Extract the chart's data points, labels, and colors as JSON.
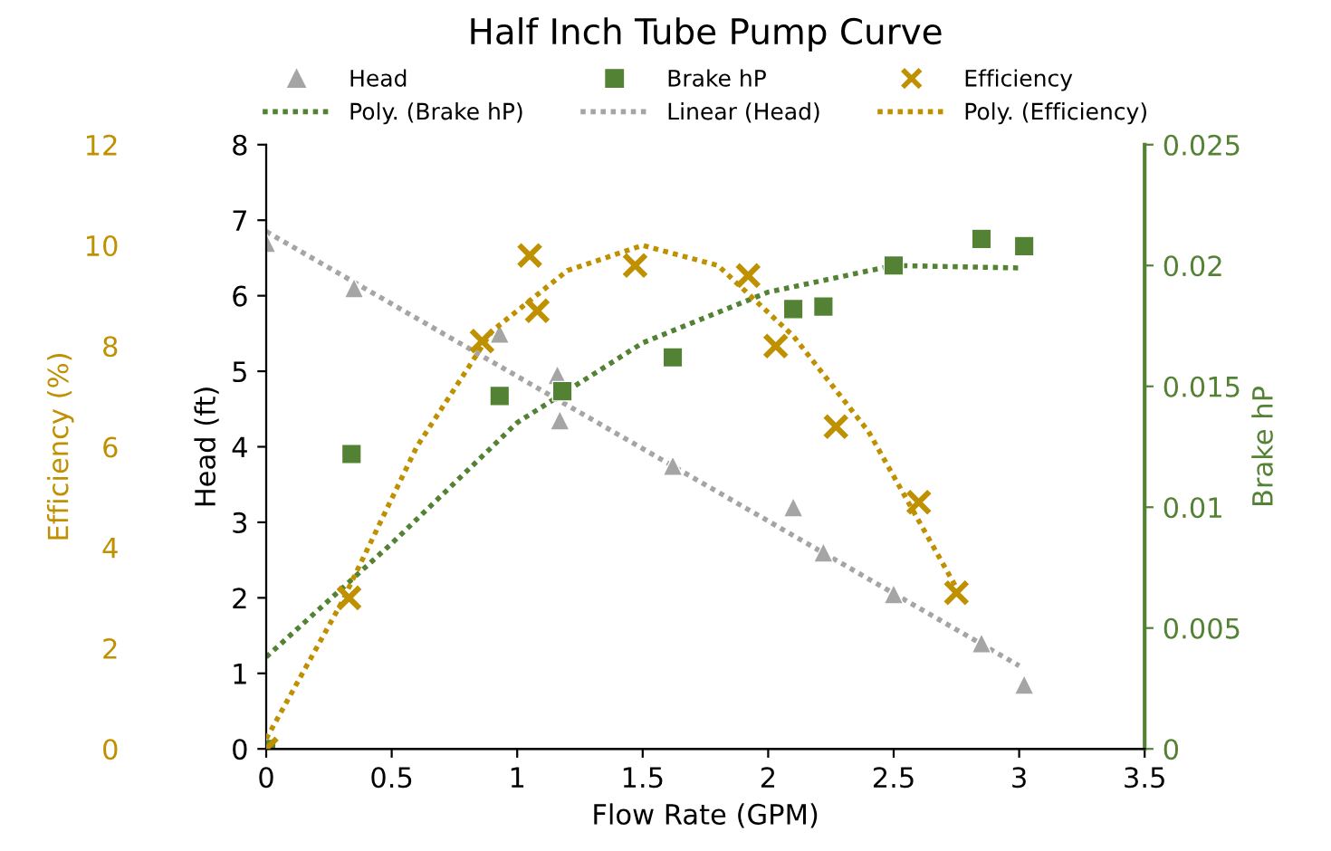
{
  "chart_data": {
    "type": "scatter",
    "title": "Half Inch Tube Pump Curve",
    "xlabel": "Flow Rate (GPM)",
    "ylabel": "Head (ft)",
    "y2label": "Brake hP",
    "y3label": "Efficiency (%)",
    "xlim": [
      0,
      3.5
    ],
    "xticks": [
      0,
      0.5,
      1,
      1.5,
      2,
      2.5,
      3,
      3.5
    ],
    "ylim": [
      0,
      8
    ],
    "yticks": [
      0,
      1,
      2,
      3,
      4,
      5,
      6,
      7,
      8
    ],
    "y2lim": [
      0,
      0.025
    ],
    "y2ticks": [
      0,
      0.005,
      0.01,
      0.015,
      0.02,
      0.025
    ],
    "y3lim": [
      0,
      12
    ],
    "y3ticks": [
      0,
      2,
      4,
      6,
      8,
      10,
      12
    ],
    "grid": false,
    "legend": "top",
    "series": [
      {
        "name": "Head",
        "color": "#a5a5a5",
        "marker": "triangle",
        "x": [
          0,
          0.35,
          0.93,
          1.16,
          1.17,
          1.62,
          2.1,
          2.22,
          2.5,
          2.85,
          3.02
        ],
        "values": [
          6.7,
          6.1,
          5.5,
          4.95,
          4.35,
          3.75,
          3.2,
          2.6,
          2.05,
          1.4,
          0.85
        ]
      },
      {
        "name": "Brake hP",
        "color": "#548235",
        "marker": "square",
        "axis": "y2",
        "x": [
          0,
          0.34,
          0.93,
          1.18,
          1.62,
          2.1,
          2.22,
          2.5,
          2.85,
          3.02
        ],
        "values": [
          0,
          0.0122,
          0.0146,
          0.0148,
          0.0162,
          0.0182,
          0.0183,
          0.02,
          0.0211,
          0.0208
        ]
      },
      {
        "name": "Efficiency",
        "color": "#bf9000",
        "marker": "cross",
        "axis": "y3",
        "x": [
          0,
          0.33,
          0.86,
          1.05,
          1.08,
          1.47,
          1.92,
          2.03,
          2.27,
          2.6,
          2.75
        ],
        "values": [
          0,
          3.0,
          8.1,
          9.8,
          8.7,
          9.6,
          9.4,
          8.0,
          6.4,
          4.9,
          3.1
        ]
      },
      {
        "name": "Poly. (Brake hP)",
        "type": "line",
        "color": "#548235",
        "marker": "none",
        "line_style": "dotted",
        "axis": "y2",
        "x": [
          0,
          0.5,
          1,
          1.5,
          2,
          2.5,
          3
        ],
        "values": [
          0.0038,
          0.0085,
          0.0135,
          0.0168,
          0.0189,
          0.02,
          0.0199
        ]
      },
      {
        "name": "Linear (Head)",
        "type": "line",
        "color": "#a5a5a5",
        "marker": "none",
        "line_style": "dotted",
        "x": [
          0,
          3
        ],
        "values": [
          6.85,
          1.1
        ]
      },
      {
        "name": "Poly. (Efficiency)",
        "type": "line",
        "color": "#bf9000",
        "marker": "none",
        "line_style": "dotted",
        "axis": "y3",
        "x": [
          0,
          0.3,
          0.6,
          0.9,
          1.2,
          1.5,
          1.8,
          2.1,
          2.4,
          2.75
        ],
        "values": [
          0.2,
          2.9,
          6.0,
          8.3,
          9.5,
          10.0,
          9.6,
          8.2,
          6.3,
          3.2
        ]
      }
    ]
  }
}
